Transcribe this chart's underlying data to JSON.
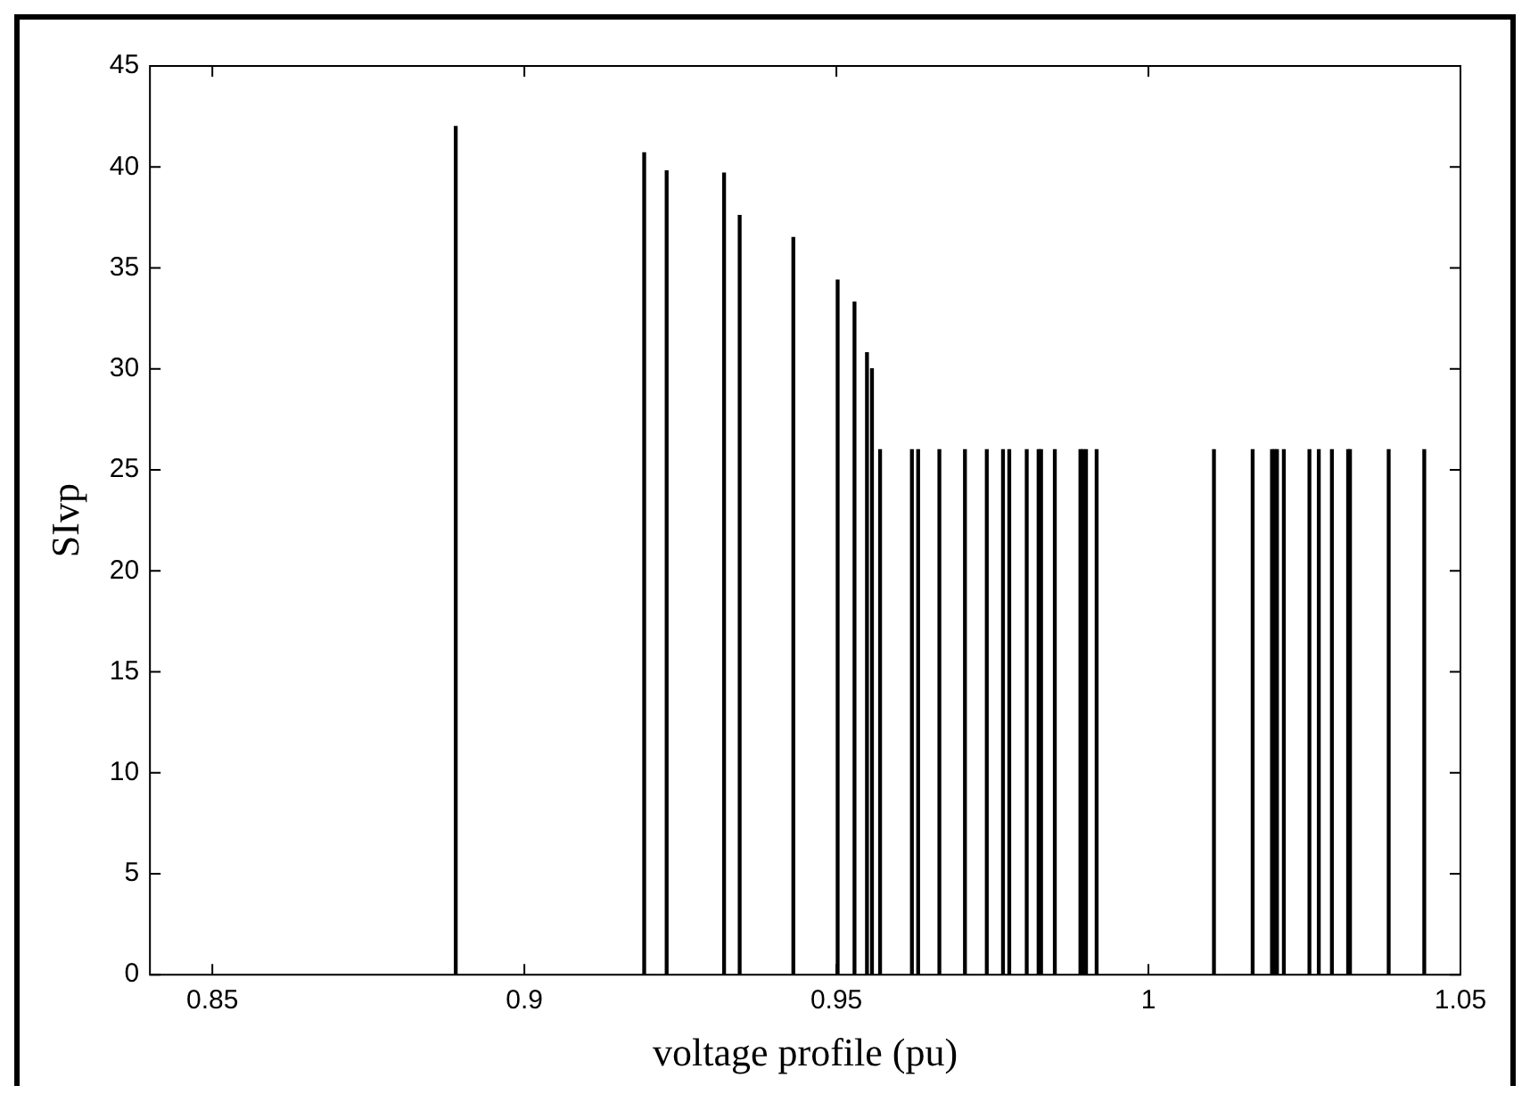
{
  "chart_data": {
    "type": "bar",
    "xlabel": "voltage profile (pu)",
    "ylabel": "SIvp",
    "grid": false,
    "legend": false,
    "x": [
      0.889,
      0.9192,
      0.9228,
      0.932,
      0.9345,
      0.9431,
      0.9502,
      0.9529,
      0.9549,
      0.9557,
      0.957,
      0.9621,
      0.9631,
      0.9665,
      0.9706,
      0.9741,
      0.9767,
      0.9777,
      0.9805,
      0.9824,
      0.9828,
      0.985,
      0.9891,
      0.9895,
      0.99,
      0.9917,
      1.0105,
      1.0167,
      1.0198,
      1.0202,
      1.0206,
      1.0217,
      1.0258,
      1.0273,
      1.0294,
      1.032,
      1.0323,
      1.0385,
      1.0442
    ],
    "series": [
      {
        "color": "#000000",
        "values": [
          42,
          40.7,
          39.8,
          39.7,
          37.6,
          36.5,
          34.4,
          33.3,
          30.8,
          30,
          26,
          26,
          26,
          26,
          26,
          26,
          26,
          26,
          26,
          26,
          26,
          26,
          26,
          26,
          26,
          26,
          26,
          26,
          26,
          26,
          26,
          26,
          26,
          26,
          26,
          26,
          26,
          26,
          26
        ]
      }
    ],
    "xlim": [
      0.84,
      1.05
    ],
    "xticks": [
      0.85,
      0.9,
      0.95,
      1,
      1.05
    ],
    "ylim": [
      0,
      45
    ],
    "yticks": [
      0,
      5,
      10,
      15,
      20,
      25,
      30,
      35,
      40,
      45
    ]
  }
}
